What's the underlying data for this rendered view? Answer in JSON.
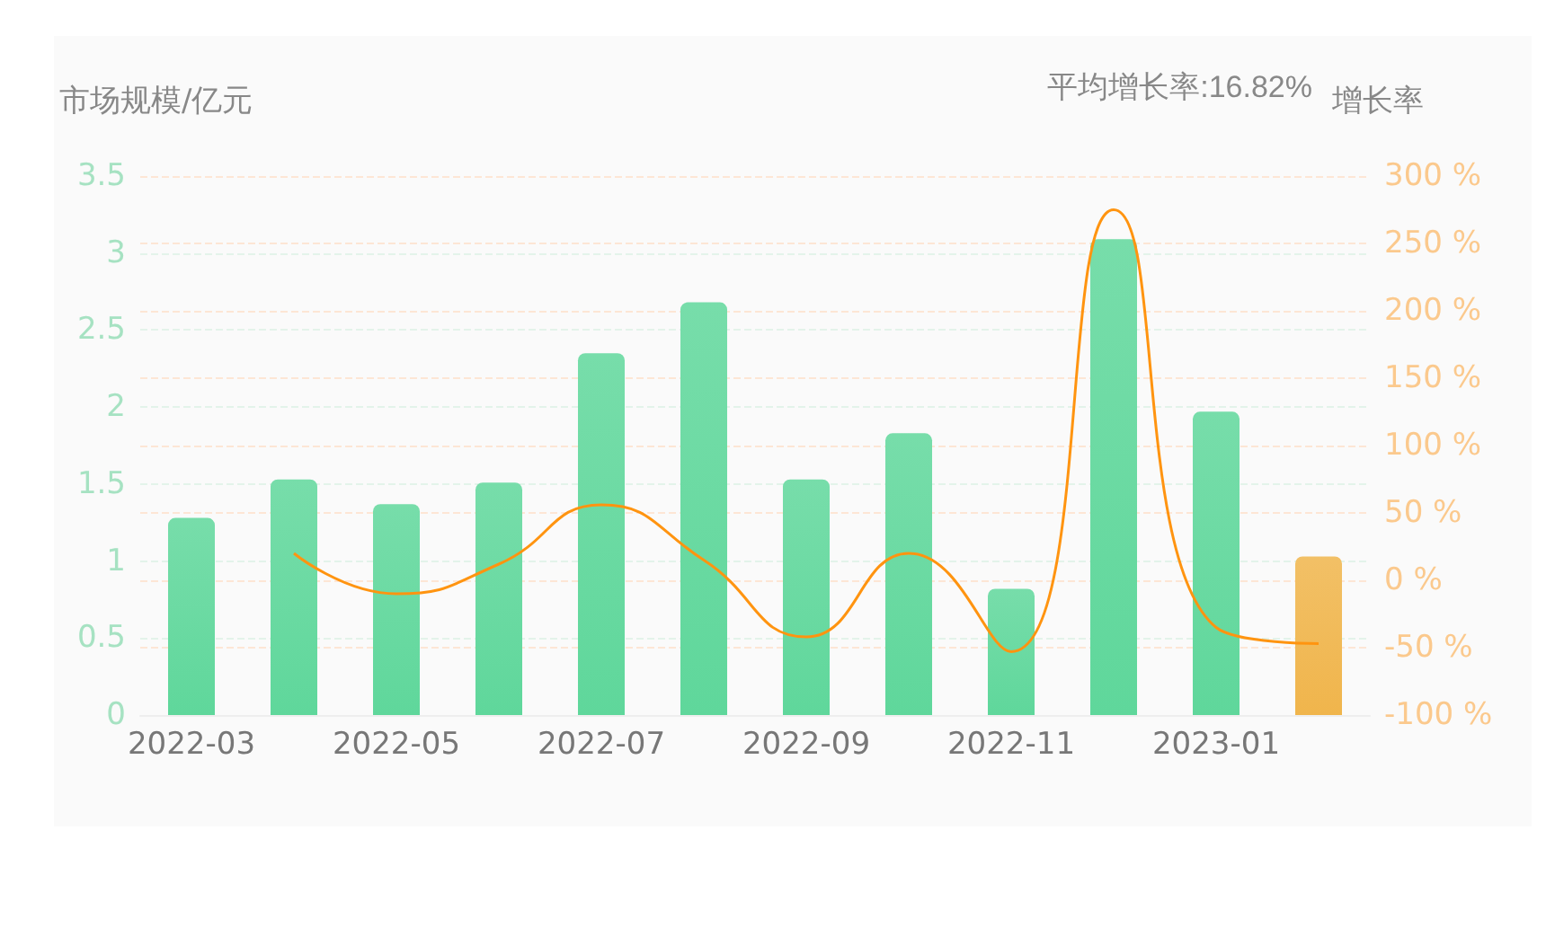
{
  "chart_data": {
    "type": "bar",
    "ylabel": "市场规模/亿元",
    "y2label": "增长率",
    "annotations": [
      "平均增长率:16.82%"
    ],
    "categories": [
      "2022-03",
      null,
      "2022-05",
      null,
      "2022-07",
      null,
      "2022-09",
      null,
      "2022-11",
      null,
      "2023-01",
      null
    ],
    "series": [
      {
        "colors": [
          "#5fd79b",
          "#5fd79b",
          "#5fd79b",
          "#5fd79b",
          "#5fd79b",
          "#5fd79b",
          "#5fd79b",
          "#5fd79b",
          "#5fd79b",
          "#5fd79b",
          "#5fd79b",
          "#f0b54c"
        ],
        "values": [
          1.28,
          1.53,
          1.37,
          1.51,
          2.35,
          2.68,
          1.53,
          1.83,
          0.82,
          3.09,
          1.97,
          1.03
        ]
      },
      {
        "type": "line",
        "axis": "y2",
        "color": "#ff9410",
        "values": [
          null,
          20,
          -10,
          12,
          56,
          15,
          -42,
          20,
          -53,
          275,
          -35,
          -47
        ]
      }
    ],
    "ylim": [
      0,
      3.5
    ],
    "yticks": [
      0,
      0.5,
      1,
      1.5,
      2,
      2.5,
      3,
      3.5
    ],
    "y2lim": [
      -100,
      300
    ],
    "y2ticks": [
      {
        "value": -100,
        "label": "-100 %"
      },
      {
        "value": -50,
        "label": "-50 %"
      },
      {
        "value": 0,
        "label": "0 %"
      },
      {
        "value": 50,
        "label": "50 %"
      },
      {
        "value": 100,
        "label": "100 %"
      },
      {
        "value": 150,
        "label": "150 %"
      },
      {
        "value": 200,
        "label": "200 %"
      },
      {
        "value": 250,
        "label": "250 %"
      },
      {
        "value": 300,
        "label": "300 %"
      }
    ],
    "grid": true,
    "marker": "none",
    "line_style": "solid"
  }
}
